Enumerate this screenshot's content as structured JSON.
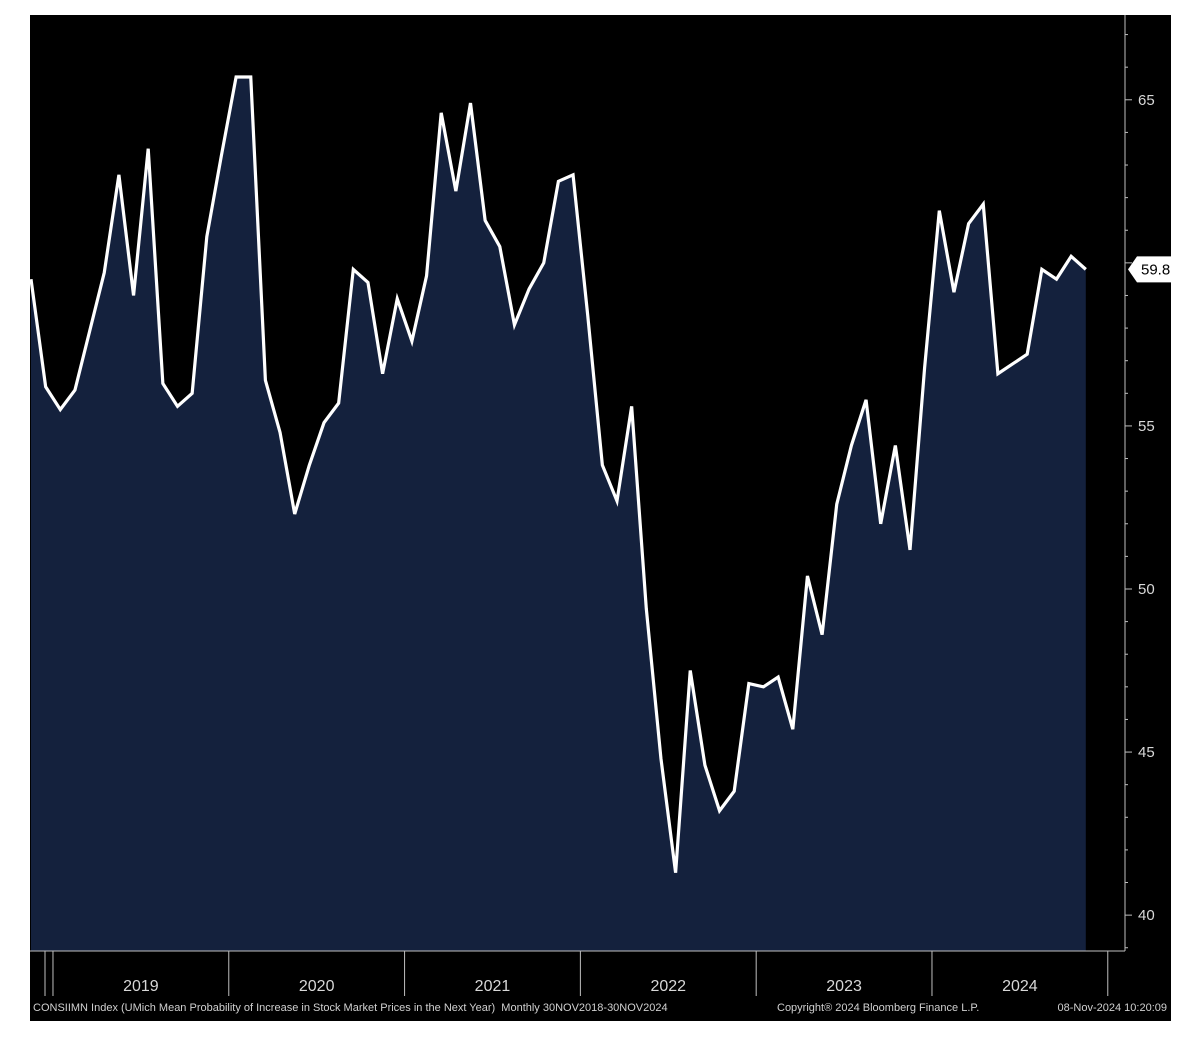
{
  "chart_data": {
    "type": "area",
    "series": [
      {
        "values": [
          59.5,
          56.2,
          55.5,
          56.1,
          57.9,
          59.7,
          62.7,
          59.0,
          63.5,
          56.3,
          55.6,
          56.0,
          60.8,
          63.3,
          65.7,
          65.7,
          56.4,
          54.8,
          52.3,
          53.8,
          55.1,
          55.7,
          59.8,
          59.4,
          56.6,
          58.9,
          57.6,
          59.6,
          64.6,
          62.2,
          64.9,
          61.3,
          60.5,
          58.1,
          59.2,
          60.0,
          62.5,
          62.7,
          58.4,
          53.8,
          52.7,
          55.6,
          49.4,
          44.8,
          41.3,
          47.5,
          44.6,
          43.2,
          43.8,
          47.1,
          47.0,
          47.3,
          45.7,
          50.4,
          48.6,
          52.6,
          54.4,
          55.8,
          52.0,
          54.4,
          51.2,
          56.8,
          61.6,
          59.1,
          61.2,
          61.8,
          56.6,
          56.9,
          57.2,
          59.8,
          59.5,
          60.2,
          59.8
        ]
      }
    ],
    "x_start": "Nov 2018",
    "x_end": "Nov 2024",
    "x_frequency": "monthly",
    "x_ticks": [
      "2019",
      "2020",
      "2021",
      "2022",
      "2023",
      "2024"
    ],
    "y_ticks": [
      40,
      45,
      50,
      55,
      60,
      65
    ],
    "y_tick_labels": [
      "40",
      "45",
      "50",
      "55",
      "",
      "65"
    ],
    "ylim": [
      38.9,
      67.6
    ],
    "last_value_label": "59.8",
    "grid": false,
    "y_axis_side": "right",
    "colors": {
      "page_background": "#ffffff",
      "plot_background": "#000000",
      "area_fill": "#14213d",
      "line": "#ffffff",
      "axis": "#bfbfbf",
      "label_box": "#ffffff"
    }
  },
  "footer": {
    "description": "CONSIIMN Index (UMich Mean Probability of Increase in Stock Market Prices in the Next Year)  Monthly 30NOV2018-30NOV2024",
    "copyright": "Copyright® 2024 Bloomberg Finance L.P.",
    "timestamp": "08-Nov-2024 10:20:09"
  }
}
